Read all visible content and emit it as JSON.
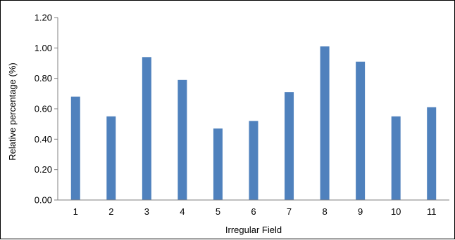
{
  "chart_data": {
    "type": "bar",
    "categories": [
      "1",
      "2",
      "3",
      "4",
      "5",
      "6",
      "7",
      "8",
      "9",
      "10",
      "11"
    ],
    "values": [
      0.68,
      0.55,
      0.94,
      0.79,
      0.47,
      0.52,
      0.71,
      1.01,
      0.91,
      0.55,
      0.61
    ],
    "title": "",
    "xlabel": "Irregular Field",
    "ylabel": "Relative percentage (%)",
    "ylim": [
      0,
      1.2
    ],
    "yticks": [
      "0.00",
      "0.20",
      "0.40",
      "0.60",
      "0.80",
      "1.00",
      "1.20"
    ],
    "grid": false,
    "legend": "none",
    "bar_color": "#4f81bd"
  }
}
